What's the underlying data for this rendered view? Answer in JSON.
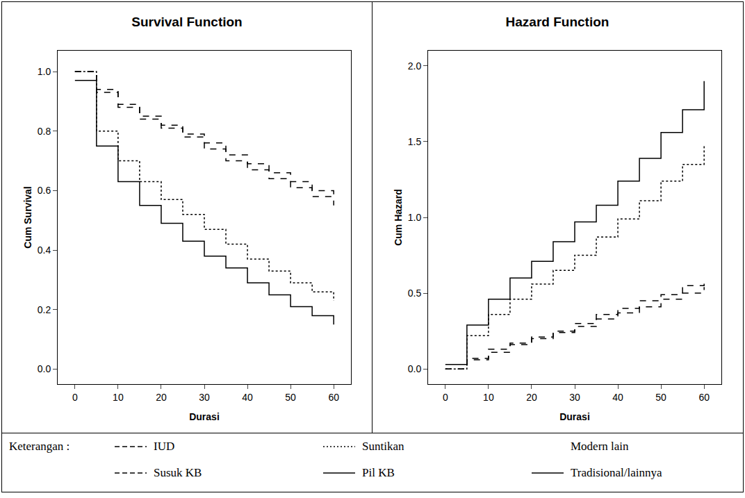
{
  "chart_data": [
    {
      "type": "line",
      "title": "Survival Function",
      "x_label": "Durasi",
      "y_label": "Cum Survival",
      "x": [
        0,
        5,
        10,
        15,
        20,
        25,
        30,
        35,
        40,
        45,
        50,
        55,
        60
      ],
      "xlim": [
        -4,
        64
      ],
      "xticks": [
        0,
        10,
        20,
        30,
        40,
        50,
        60
      ],
      "ylim": [
        -0.05,
        1.07
      ],
      "yticks": [
        {
          "value": 0,
          "label": "0.0"
        },
        {
          "value": 0.2,
          "label": "0.2"
        },
        {
          "value": 0.4,
          "label": "0.4"
        },
        {
          "value": 0.6,
          "label": "0.6"
        },
        {
          "value": 0.8,
          "label": "0.8"
        },
        {
          "value": 1,
          "label": "1.0"
        }
      ],
      "grid": false,
      "series": [
        {
          "name": "IUD",
          "color": "#000000",
          "line_style": "dash",
          "values": [
            1.0,
            0.94,
            0.89,
            0.85,
            0.82,
            0.79,
            0.76,
            0.72,
            0.69,
            0.66,
            0.63,
            0.6,
            0.58
          ]
        },
        {
          "name": "Suntikan",
          "color": "#000000",
          "line_style": "dot",
          "values": [
            1.0,
            0.8,
            0.7,
            0.63,
            0.57,
            0.52,
            0.47,
            0.42,
            0.37,
            0.33,
            0.29,
            0.26,
            0.23
          ]
        },
        {
          "name": "Modern lain",
          "color": "#000000",
          "line_style": "none",
          "values": [
            null,
            null,
            null,
            null,
            null,
            null,
            null,
            null,
            null,
            null,
            null,
            null,
            null
          ]
        },
        {
          "name": "Susuk KB",
          "color": "#000000",
          "line_style": "dash",
          "values": [
            1.0,
            0.93,
            0.88,
            0.84,
            0.81,
            0.78,
            0.74,
            0.7,
            0.67,
            0.64,
            0.61,
            0.58,
            0.55
          ]
        },
        {
          "name": "Pil KB",
          "color": "#000000",
          "line_style": "solid",
          "values": [
            0.97,
            0.75,
            0.63,
            0.55,
            0.49,
            0.43,
            0.38,
            0.34,
            0.29,
            0.25,
            0.21,
            0.18,
            0.15
          ]
        },
        {
          "name": "Tradisional/lainnya",
          "color": "#000000",
          "line_style": "solid",
          "values": [
            null,
            null,
            null,
            null,
            null,
            null,
            null,
            null,
            null,
            null,
            null,
            null,
            null
          ]
        }
      ]
    },
    {
      "type": "line",
      "title": "Hazard Function",
      "x_label": "Durasi",
      "y_label": "Cum Hazard",
      "x": [
        0,
        5,
        10,
        15,
        20,
        25,
        30,
        35,
        40,
        45,
        50,
        55,
        60
      ],
      "xlim": [
        -4,
        64
      ],
      "xticks": [
        0,
        10,
        20,
        30,
        40,
        50,
        60
      ],
      "ylim": [
        -0.1,
        2.1
      ],
      "yticks": [
        {
          "value": 0,
          "label": "0.0"
        },
        {
          "value": 0.5,
          "label": "0.5"
        },
        {
          "value": 1,
          "label": "1.0"
        },
        {
          "value": 1.5,
          "label": "1.5"
        },
        {
          "value": 2,
          "label": "2.0"
        }
      ],
      "grid": false,
      "series": [
        {
          "name": "IUD",
          "color": "#000000",
          "line_style": "dash",
          "values": [
            0,
            0.06,
            0.11,
            0.16,
            0.2,
            0.24,
            0.28,
            0.33,
            0.37,
            0.41,
            0.46,
            0.5,
            0.54
          ]
        },
        {
          "name": "Suntikan",
          "color": "#000000",
          "line_style": "dot",
          "values": [
            0,
            0.22,
            0.36,
            0.46,
            0.56,
            0.65,
            0.75,
            0.87,
            0.99,
            1.11,
            1.24,
            1.35,
            1.47
          ]
        },
        {
          "name": "Modern lain",
          "color": "#000000",
          "line_style": "none",
          "values": [
            null,
            null,
            null,
            null,
            null,
            null,
            null,
            null,
            null,
            null,
            null,
            null,
            null
          ]
        },
        {
          "name": "Susuk KB",
          "color": "#000000",
          "line_style": "dash",
          "values": [
            0,
            0.07,
            0.13,
            0.17,
            0.21,
            0.25,
            0.3,
            0.36,
            0.4,
            0.45,
            0.49,
            0.55,
            0.6
          ]
        },
        {
          "name": "Pil KB",
          "color": "#000000",
          "line_style": "solid",
          "values": [
            0.03,
            0.29,
            0.46,
            0.6,
            0.71,
            0.84,
            0.97,
            1.08,
            1.24,
            1.39,
            1.56,
            1.71,
            1.9
          ]
        },
        {
          "name": "Tradisional/lainnya",
          "color": "#000000",
          "line_style": "solid",
          "values": [
            null,
            null,
            null,
            null,
            null,
            null,
            null,
            null,
            null,
            null,
            null,
            null,
            null
          ]
        }
      ]
    }
  ],
  "legend_label": "Keterangan :"
}
